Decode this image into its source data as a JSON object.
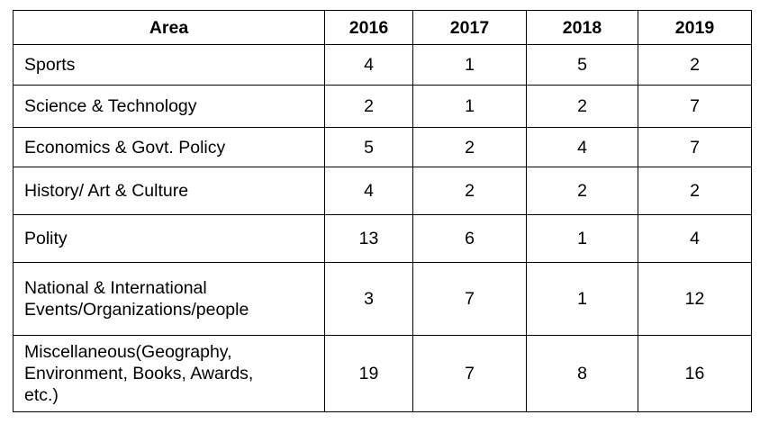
{
  "table": {
    "headers": [
      "Area",
      "2016",
      "2017",
      "2018",
      "2019"
    ],
    "rows": [
      {
        "area": "Sports",
        "values": [
          "4",
          "1",
          "5",
          "2"
        ]
      },
      {
        "area": "Science & Technology",
        "values": [
          "2",
          "1",
          "2",
          "7"
        ]
      },
      {
        "area": "Economics & Govt. Policy",
        "values": [
          "5",
          "2",
          "4",
          "7"
        ]
      },
      {
        "area": "History/ Art & Culture",
        "values": [
          "4",
          "2",
          "2",
          "2"
        ]
      },
      {
        "area": "Polity",
        "values": [
          "13",
          "6",
          "1",
          "4"
        ]
      },
      {
        "area": "National & International\nEvents/Organizations/people",
        "values": [
          "3",
          "7",
          "1",
          "12"
        ]
      },
      {
        "area": "Miscellaneous(Geography,\nEnvironment, Books, Awards,\netc.)",
        "values": [
          "19",
          "7",
          "8",
          "16"
        ]
      }
    ]
  }
}
